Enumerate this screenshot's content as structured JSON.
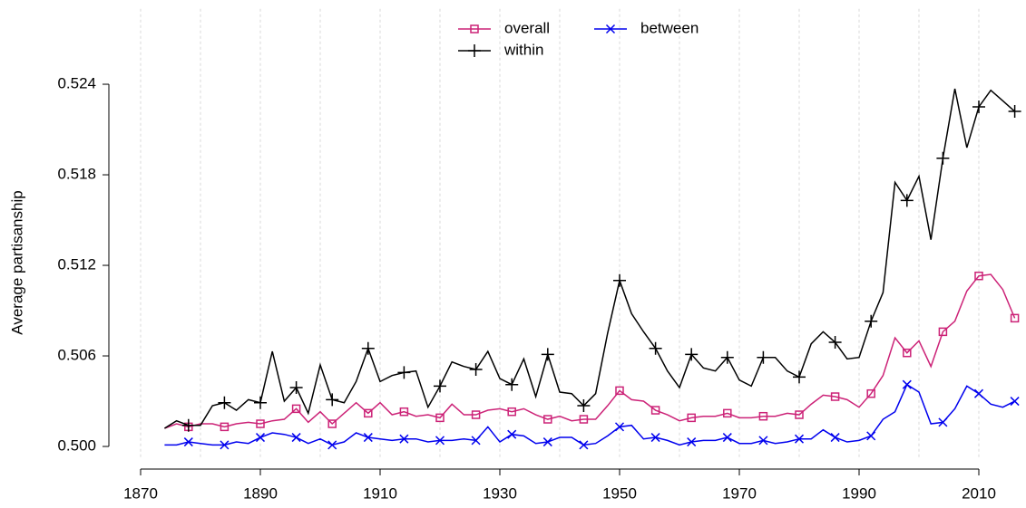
{
  "chart_data": {
    "type": "line",
    "y_label": "Average partisanship",
    "x": [
      1874,
      1876,
      1878,
      1880,
      1882,
      1884,
      1886,
      1888,
      1890,
      1892,
      1894,
      1896,
      1898,
      1900,
      1902,
      1904,
      1906,
      1908,
      1910,
      1912,
      1914,
      1916,
      1918,
      1920,
      1922,
      1924,
      1926,
      1928,
      1930,
      1932,
      1934,
      1936,
      1938,
      1940,
      1942,
      1944,
      1946,
      1948,
      1950,
      1952,
      1954,
      1956,
      1958,
      1960,
      1962,
      1964,
      1966,
      1968,
      1970,
      1972,
      1974,
      1976,
      1978,
      1980,
      1982,
      1984,
      1986,
      1988,
      1990,
      1992,
      1994,
      1996,
      1998,
      2000,
      2002,
      2004,
      2006,
      2008,
      2010,
      2012,
      2014,
      2016
    ],
    "series": [
      {
        "name": "overall",
        "color": "#cc2277",
        "marker": "square",
        "values": [
          0.5012,
          0.5015,
          0.5013,
          0.5015,
          0.5015,
          0.5013,
          0.5015,
          0.5016,
          0.5015,
          0.5017,
          0.5018,
          0.5025,
          0.5016,
          0.5023,
          0.5015,
          0.5022,
          0.5029,
          0.5022,
          0.5029,
          0.5021,
          0.5023,
          0.502,
          0.5021,
          0.5019,
          0.5028,
          0.5021,
          0.5021,
          0.5024,
          0.5025,
          0.5023,
          0.5025,
          0.5021,
          0.5018,
          0.502,
          0.5017,
          0.5018,
          0.5018,
          0.5027,
          0.5037,
          0.5031,
          0.503,
          0.5024,
          0.5021,
          0.5017,
          0.5019,
          0.502,
          0.502,
          0.5022,
          0.5019,
          0.5019,
          0.502,
          0.502,
          0.5022,
          0.5021,
          0.5028,
          0.5034,
          0.5033,
          0.5031,
          0.5026,
          0.5035,
          0.5047,
          0.5072,
          0.5062,
          0.507,
          0.5053,
          0.5076,
          0.5083,
          0.5103,
          0.5113,
          0.5114,
          0.5104,
          0.5085
        ]
      },
      {
        "name": "within",
        "color": "#000000",
        "marker": "plus",
        "values": [
          0.5012,
          0.5017,
          0.5014,
          0.5014,
          0.5027,
          0.5029,
          0.5024,
          0.5031,
          0.5029,
          0.5063,
          0.503,
          0.5039,
          0.5022,
          0.5054,
          0.5031,
          0.5029,
          0.5043,
          0.5065,
          0.5043,
          0.5047,
          0.5049,
          0.505,
          0.5026,
          0.504,
          0.5056,
          0.5053,
          0.5051,
          0.5063,
          0.5045,
          0.5041,
          0.5058,
          0.5033,
          0.5061,
          0.5036,
          0.5035,
          0.5027,
          0.5035,
          0.5075,
          0.511,
          0.5088,
          0.5076,
          0.5065,
          0.505,
          0.5039,
          0.5061,
          0.5052,
          0.505,
          0.5059,
          0.5044,
          0.504,
          0.5059,
          0.5059,
          0.505,
          0.5046,
          0.5068,
          0.5076,
          0.5069,
          0.5058,
          0.5059,
          0.5083,
          0.5102,
          0.5175,
          0.5163,
          0.5179,
          0.5137,
          0.5191,
          0.5237,
          0.5198,
          0.5225,
          0.5236,
          0.5229,
          0.5222
        ]
      },
      {
        "name": "between",
        "color": "#0000ee",
        "marker": "x",
        "values": [
          0.5001,
          0.5001,
          0.5003,
          0.5002,
          0.5001,
          0.5001,
          0.5003,
          0.5002,
          0.5006,
          0.5009,
          0.5008,
          0.5006,
          0.5002,
          0.5005,
          0.5001,
          0.5003,
          0.5009,
          0.5006,
          0.5005,
          0.5004,
          0.5005,
          0.5005,
          0.5003,
          0.5004,
          0.5004,
          0.5005,
          0.5004,
          0.5013,
          0.5003,
          0.5008,
          0.5007,
          0.5002,
          0.5003,
          0.5006,
          0.5006,
          0.5001,
          0.5002,
          0.5007,
          0.5013,
          0.5014,
          0.5005,
          0.5006,
          0.5004,
          0.5001,
          0.5003,
          0.5004,
          0.5004,
          0.5006,
          0.5002,
          0.5002,
          0.5004,
          0.5002,
          0.5003,
          0.5005,
          0.5005,
          0.5011,
          0.5006,
          0.5003,
          0.5004,
          0.5007,
          0.5018,
          0.5023,
          0.5041,
          0.5036,
          0.5015,
          0.5016,
          0.5025,
          0.504,
          0.5035,
          0.5028,
          0.5026,
          0.503
        ]
      }
    ],
    "xlim": [
      1866,
      2017.5
    ],
    "xticks": [
      1870,
      1890,
      1910,
      1930,
      1950,
      1970,
      1990,
      2010
    ],
    "x_gridlines": [
      1870,
      1880,
      1890,
      1900,
      1910,
      1920,
      1930,
      1940,
      1950,
      1960,
      1970,
      1980,
      1990,
      2000,
      2010
    ],
    "ylim": [
      0.4993,
      0.529
    ],
    "yticks": [
      {
        "value": 0.5,
        "label": "0.500"
      },
      0.506,
      0.512,
      0.518,
      0.524
    ],
    "legend": "top"
  }
}
